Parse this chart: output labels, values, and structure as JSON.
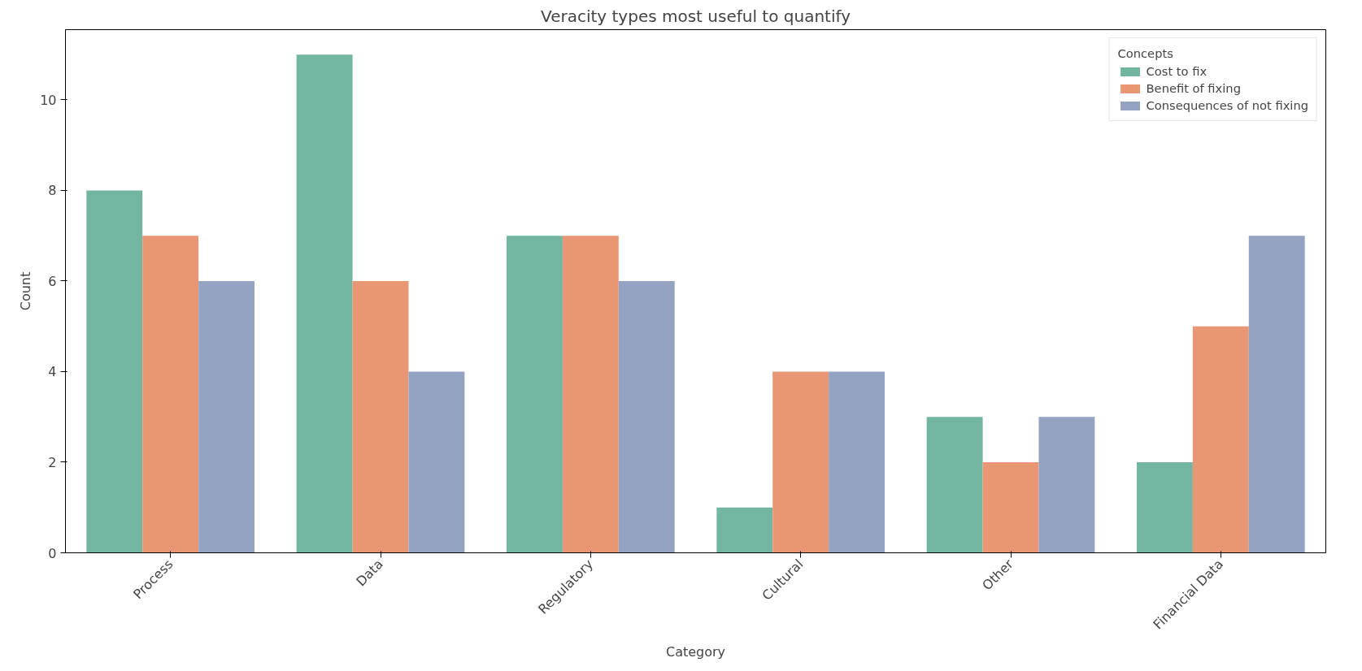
{
  "chart_data": {
    "type": "bar",
    "title": "Veracity types most useful to quantify",
    "xlabel": "Category",
    "ylabel": "Count",
    "legend_title": "Concepts",
    "categories": [
      "Process",
      "Data",
      "Regulatory",
      "Cultural",
      "Other",
      "Financial Data"
    ],
    "series": [
      {
        "name": "Cost to fix",
        "color": "#72b6a1",
        "values": [
          8,
          11,
          7,
          1,
          3,
          2
        ]
      },
      {
        "name": "Benefit of fixing",
        "color": "#e99675",
        "values": [
          7,
          6,
          7,
          4,
          2,
          5
        ]
      },
      {
        "name": "Consequences of not fixing",
        "color": "#95a3c3",
        "values": [
          6,
          4,
          6,
          4,
          3,
          7
        ]
      }
    ],
    "ylim": [
      0,
      11.55
    ],
    "yticks": [
      0,
      2,
      4,
      6,
      8,
      10
    ],
    "grid": false,
    "legend": "top right"
  }
}
